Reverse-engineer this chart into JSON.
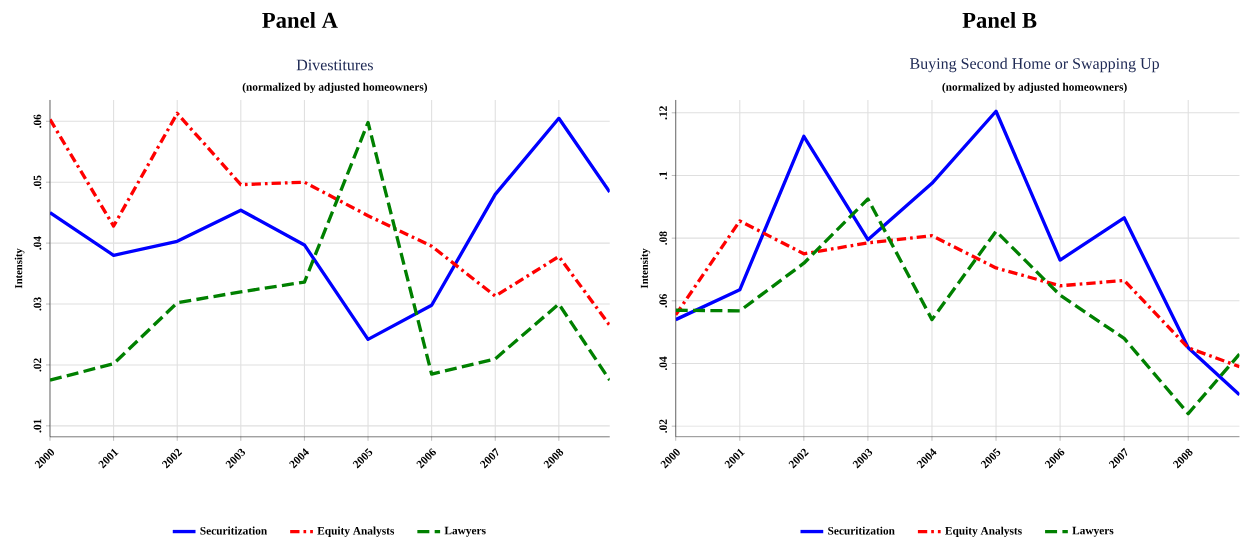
{
  "chart_data": [
    {
      "type": "line",
      "title": "Panel A",
      "subtitle": "Divestitures",
      "annotations": [
        "(normalized by adjusted homeowners)"
      ],
      "ylabel": "Intensity",
      "series": [
        {
          "name": "Securitization",
          "color": "#0000ff",
          "line_style": "solid",
          "x": [
            2000,
            2001,
            2002,
            2003,
            2004,
            2005,
            2006,
            2007,
            2008,
            2008.8
          ],
          "values": [
            0.045,
            0.038,
            0.0403,
            0.0454,
            0.0397,
            0.0242,
            0.0298,
            0.048,
            0.0605,
            0.0484
          ]
        },
        {
          "name": "Equity Analysts",
          "color": "#ff0000",
          "line_style": "dashdot",
          "x": [
            2000,
            2001,
            2002,
            2003,
            2004,
            2005,
            2006,
            2007,
            2008,
            2008.8
          ],
          "values": [
            0.0603,
            0.0428,
            0.0613,
            0.0496,
            0.05,
            0.0445,
            0.0395,
            0.0313,
            0.0378,
            0.0265
          ]
        },
        {
          "name": "Lawyers",
          "color": "#008000",
          "line_style": "dashed",
          "x": [
            2000,
            2001,
            2002,
            2003,
            2004,
            2005,
            2006,
            2007,
            2008,
            2008.8
          ],
          "values": [
            0.0175,
            0.0202,
            0.0302,
            0.032,
            0.0336,
            0.0598,
            0.0185,
            0.021,
            0.03,
            0.0175
          ]
        }
      ],
      "xlim": [
        2000,
        2008.8
      ],
      "xticks": [
        2000,
        2001,
        2002,
        2003,
        2004,
        2005,
        2006,
        2007,
        2008
      ],
      "ylim": [
        0.0082,
        0.0635
      ],
      "yticks": [
        {
          "value": 0.01,
          "label": ".01"
        },
        {
          "value": 0.02,
          "label": ".02"
        },
        {
          "value": 0.03,
          "label": ".03"
        },
        {
          "value": 0.04,
          "label": ".04"
        },
        {
          "value": 0.05,
          "label": ".05"
        },
        {
          "value": 0.06,
          "label": ".06"
        }
      ],
      "grid": true,
      "legend": "bottom"
    },
    {
      "type": "line",
      "title": "Panel B",
      "subtitle": "Buying Second Home or Swapping Up",
      "annotations": [
        "(normalized by adjusted homeowners)"
      ],
      "ylabel": "Intensity",
      "series": [
        {
          "name": "Securitization",
          "color": "#0000ff",
          "line_style": "solid",
          "x": [
            2000,
            2001,
            2002,
            2003,
            2004,
            2005,
            2006,
            2007,
            2008,
            2008.8
          ],
          "values": [
            0.054,
            0.0635,
            0.1125,
            0.0795,
            0.0975,
            0.1205,
            0.073,
            0.0865,
            0.045,
            0.03
          ]
        },
        {
          "name": "Equity Analysts",
          "color": "#ff0000",
          "line_style": "dashdot",
          "x": [
            2000,
            2001,
            2002,
            2003,
            2004,
            2005,
            2006,
            2007,
            2008,
            2008.8
          ],
          "values": [
            0.0555,
            0.0855,
            0.075,
            0.0785,
            0.0808,
            0.0705,
            0.0648,
            0.0665,
            0.045,
            0.039
          ]
        },
        {
          "name": "Lawyers",
          "color": "#008000",
          "line_style": "dashed",
          "x": [
            2000,
            2001,
            2002,
            2003,
            2004,
            2005,
            2006,
            2007,
            2008,
            2008.8
          ],
          "values": [
            0.057,
            0.0568,
            0.072,
            0.0925,
            0.054,
            0.0822,
            0.0618,
            0.048,
            0.024,
            0.043
          ]
        }
      ],
      "xlim": [
        2000,
        2008.8
      ],
      "xticks": [
        2000,
        2001,
        2002,
        2003,
        2004,
        2005,
        2006,
        2007,
        2008
      ],
      "ylim": [
        0.0166,
        0.1241
      ],
      "yticks": [
        {
          "value": 0.02,
          "label": ".02"
        },
        {
          "value": 0.04,
          "label": ".04"
        },
        {
          "value": 0.06,
          "label": ".06"
        },
        {
          "value": 0.08,
          "label": ".08"
        },
        {
          "value": 0.1,
          "label": ".1"
        },
        {
          "value": 0.12,
          "label": ".12"
        }
      ],
      "grid": true,
      "legend": "bottom"
    }
  ]
}
